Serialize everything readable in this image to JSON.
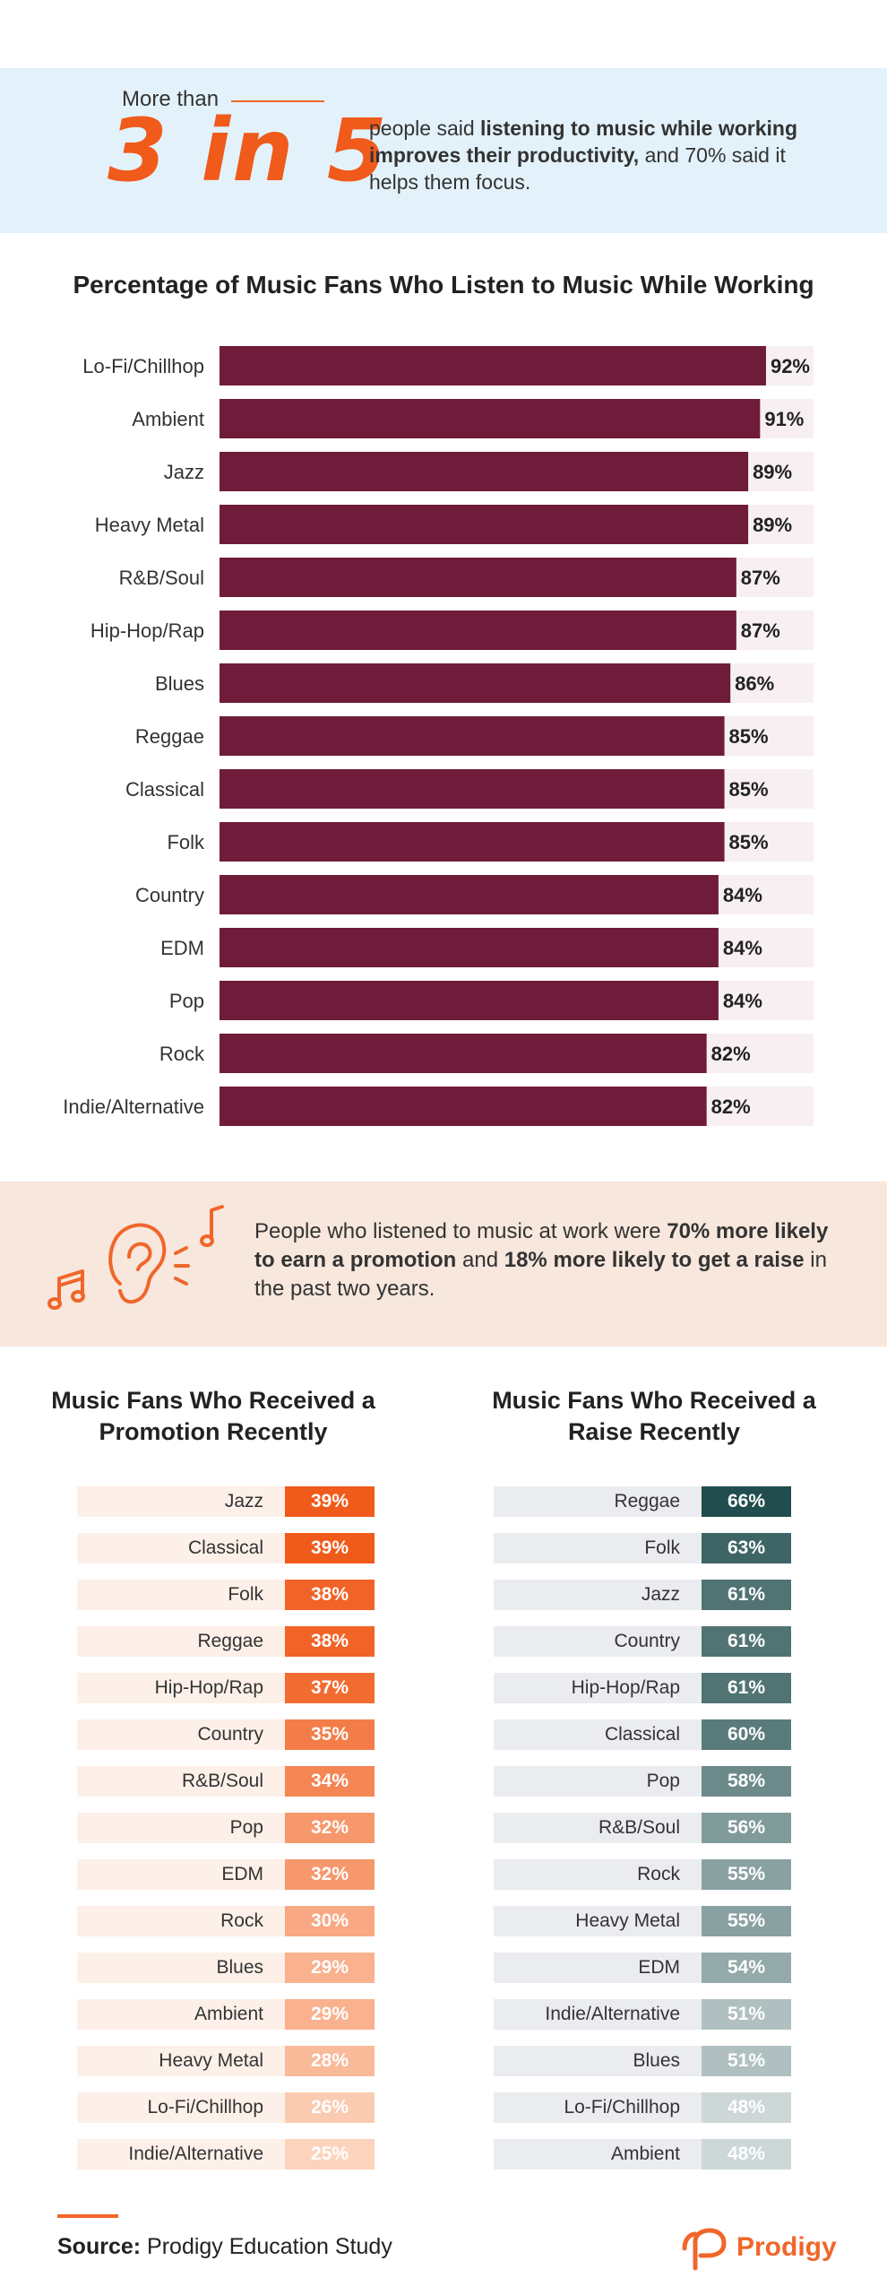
{
  "hero": {
    "prefix": "More than",
    "big": "3 in 5",
    "text_a": "people said ",
    "text_bold": "listening to music while working improves their productivity,",
    "text_c": " and 70% said it helps them focus."
  },
  "mid": {
    "t1": "People who listened to music at work were ",
    "b1": "70% more likely to earn a promotion",
    "t2": " and ",
    "b2": "18% more likely to get a raise",
    "t3": " in the past two years."
  },
  "chart_data": [
    {
      "type": "bar",
      "title": "Percentage of Music Fans Who Listen to Music While Working",
      "categories": [
        "Lo-Fi/Chillhop",
        "Ambient",
        "Jazz",
        "Heavy Metal",
        "R&B/Soul",
        "Hip-Hop/Rap",
        "Blues",
        "Reggae",
        "Classical",
        "Folk",
        "Country",
        "EDM",
        "Pop",
        "Rock",
        "Indie/Alternative"
      ],
      "values": [
        92,
        91,
        89,
        89,
        87,
        87,
        86,
        85,
        85,
        85,
        84,
        84,
        84,
        82,
        82
      ],
      "labels": [
        "92%",
        "91%",
        "89%",
        "89%",
        "87%",
        "87%",
        "86%",
        "85%",
        "85%",
        "85%",
        "84%",
        "84%",
        "84%",
        "82%",
        "82%"
      ],
      "ylim": [
        0,
        100
      ],
      "colors": {
        "bar": "#6e1c3a",
        "track": "#f7eff2"
      }
    },
    {
      "type": "table",
      "title": "Music Fans Who Received a Promotion Recently",
      "categories": [
        "Jazz",
        "Classical",
        "Folk",
        "Reggae",
        "Hip-Hop/Rap",
        "Country",
        "R&B/Soul",
        "Pop",
        "EDM",
        "Rock",
        "Blues",
        "Ambient",
        "Heavy Metal",
        "Lo-Fi/Chillhop",
        "Indie/Alternative"
      ],
      "values": [
        39,
        39,
        38,
        38,
        37,
        35,
        34,
        32,
        32,
        30,
        29,
        29,
        28,
        26,
        25
      ],
      "labels": [
        "39%",
        "39%",
        "38%",
        "38%",
        "37%",
        "35%",
        "34%",
        "32%",
        "32%",
        "30%",
        "29%",
        "29%",
        "28%",
        "26%",
        "25%"
      ],
      "colors": {
        "high": "#f05a1a",
        "low": "#fcd4bd",
        "row": "#fdf0e9"
      }
    },
    {
      "type": "table",
      "title": "Music Fans Who Received a Raise Recently",
      "categories": [
        "Reggae",
        "Folk",
        "Jazz",
        "Country",
        "Hip-Hop/Rap",
        "Classical",
        "Pop",
        "R&B/Soul",
        "Rock",
        "Heavy Metal",
        "EDM",
        "Indie/Alternative",
        "Blues",
        "Lo-Fi/Chillhop",
        "Ambient"
      ],
      "values": [
        66,
        63,
        61,
        61,
        61,
        60,
        58,
        56,
        55,
        55,
        54,
        51,
        51,
        48,
        48
      ],
      "labels": [
        "66%",
        "63%",
        "61%",
        "61%",
        "61%",
        "60%",
        "58%",
        "56%",
        "55%",
        "55%",
        "54%",
        "51%",
        "51%",
        "48%",
        "48%"
      ],
      "colors": {
        "high": "#214d4e",
        "low": "#cdd7d7",
        "row": "#ebecef"
      }
    }
  ],
  "footer": {
    "source_label": "Source:",
    "source_text": " Prodigy Education Study",
    "brand": "Prodigy"
  }
}
